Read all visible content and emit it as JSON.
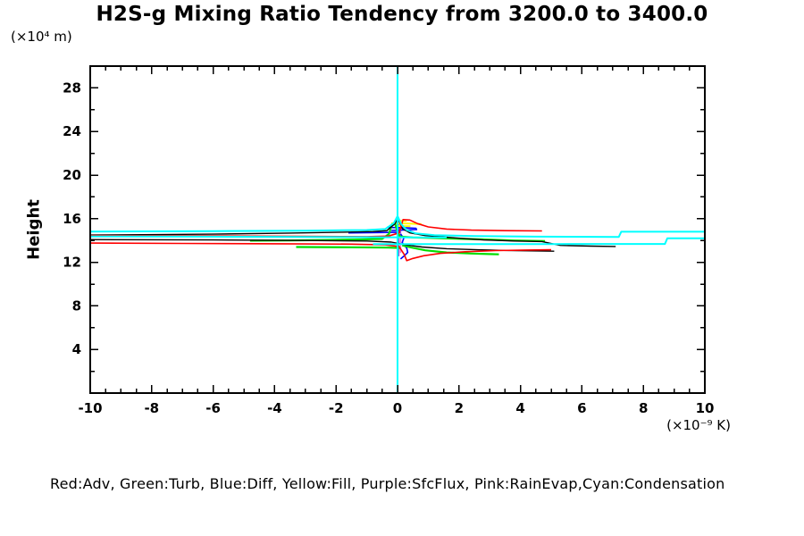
{
  "chart_data": {
    "type": "line",
    "title": "H2S-g Mixing Ratio Tendency from 3200.0 to 3400.0",
    "ylabel": "Height",
    "y_unit_label": "(×10⁴ m)",
    "x_unit_label": "(×10⁻⁹ K)",
    "legend_text": "Red:Adv, Green:Turb, Blue:Diff, Yellow:Fill, Purple:SfcFlux, Pink:RainEvap,Cyan:Condensation",
    "xlim": [
      -10,
      10
    ],
    "ylim": [
      0,
      30
    ],
    "x_major_ticks": [
      -10,
      -8,
      -6,
      -4,
      -2,
      0,
      2,
      4,
      6,
      8,
      10
    ],
    "x_minor_step": 0.5,
    "y_major_ticks": [
      4,
      8,
      12,
      16,
      20,
      24,
      28
    ],
    "y_minor_step": 2,
    "grid": false,
    "legend_position": "bottom",
    "axis_color": "#000000",
    "colors": {
      "adv": "#ff0000",
      "turb": "#00dd00",
      "diff": "#0000ff",
      "fill": "#ffff00",
      "sfcflux": "#aa44cc",
      "rainevap": "#dd7edd",
      "condensation": "#00ffff",
      "unlabeled_total": "#000000"
    },
    "series": [
      {
        "name": "sfcflux",
        "legend": "Purple:SfcFlux",
        "color": "#aa44cc",
        "width": 1.4,
        "points": [
          [
            0.04,
            15.95
          ],
          [
            0.04,
            12.55
          ]
        ]
      },
      {
        "name": "rainevap",
        "legend": "Pink:RainEvap",
        "color": "#dd7edd",
        "width": 1.6,
        "points": [
          [
            0.1,
            15.6
          ],
          [
            0.1,
            12.85
          ]
        ]
      },
      {
        "name": "fill-1",
        "legend": "Yellow:Fill",
        "color": "#ffff00",
        "width": 2,
        "points": [
          [
            -0.1,
            15.82
          ],
          [
            0.3,
            15.8
          ]
        ]
      },
      {
        "name": "fill-2",
        "legend": "Yellow:Fill",
        "color": "#ffff00",
        "width": 2,
        "points": [
          [
            -0.2,
            15.58
          ],
          [
            0.35,
            15.55
          ],
          [
            0.78,
            15.5
          ]
        ]
      },
      {
        "name": "fill-3",
        "legend": "Yellow:Fill",
        "color": "#ffff00",
        "width": 2,
        "points": [
          [
            -0.05,
            15.33
          ],
          [
            0.42,
            15.3
          ]
        ]
      },
      {
        "name": "diff-1",
        "legend": "Blue:Diff",
        "color": "#0000ff",
        "width": 1.6,
        "points": [
          [
            -1.6,
            14.7
          ],
          [
            -0.6,
            14.73
          ],
          [
            0.1,
            14.76
          ]
        ]
      },
      {
        "name": "diff-2",
        "legend": "Blue:Diff",
        "color": "#0000ff",
        "width": 1.6,
        "points": [
          [
            -0.35,
            15.2
          ],
          [
            0.2,
            15.17
          ],
          [
            0.6,
            15.12
          ],
          [
            0.62,
            15.0
          ],
          [
            0.1,
            14.95
          ],
          [
            -0.2,
            14.92
          ]
        ]
      },
      {
        "name": "diff-3",
        "legend": "Blue:Diff",
        "color": "#0000ff",
        "width": 1.6,
        "points": [
          [
            0.1,
            14.6
          ],
          [
            0.2,
            14.2
          ],
          [
            0.15,
            13.8
          ],
          [
            0.3,
            13.3
          ],
          [
            0.33,
            12.9
          ],
          [
            0.2,
            12.55
          ],
          [
            0.1,
            12.3
          ]
        ]
      },
      {
        "name": "turb-1",
        "legend": "Green:Turb",
        "color": "#00dd00",
        "width": 2.2,
        "points": [
          [
            -4.8,
            13.98
          ],
          [
            -3.5,
            14.0
          ],
          [
            -2.2,
            14.05
          ],
          [
            -1.2,
            14.1
          ],
          [
            -0.5,
            14.15
          ],
          [
            -0.28,
            14.6
          ],
          [
            -0.18,
            15.5
          ],
          [
            -0.08,
            15.55
          ],
          [
            0.0,
            14.8
          ],
          [
            0.08,
            14.35
          ],
          [
            0.5,
            14.28
          ],
          [
            1.5,
            14.2
          ],
          [
            2.8,
            14.1
          ],
          [
            3.8,
            14.0
          ],
          [
            4.8,
            13.95
          ]
        ]
      },
      {
        "name": "turb-2",
        "legend": "Green:Turb",
        "color": "#00dd00",
        "width": 2.2,
        "points": [
          [
            0.15,
            13.55
          ],
          [
            0.45,
            13.35
          ],
          [
            0.9,
            13.1
          ],
          [
            1.6,
            12.9
          ],
          [
            2.4,
            12.8
          ],
          [
            3.1,
            12.75
          ],
          [
            3.3,
            12.73
          ]
        ]
      },
      {
        "name": "turb-3",
        "legend": "Green:Turb",
        "color": "#00dd00",
        "width": 2.2,
        "points": [
          [
            -3.3,
            13.4
          ],
          [
            -1.5,
            13.38
          ],
          [
            -0.3,
            13.35
          ],
          [
            0.1,
            13.3
          ]
        ]
      },
      {
        "name": "black-upper",
        "legend": null,
        "color": "#000000",
        "width": 1.4,
        "points": [
          [
            -10,
            14.5
          ],
          [
            -6,
            14.58
          ],
          [
            -3.5,
            14.68
          ],
          [
            -1.8,
            14.76
          ],
          [
            -0.8,
            14.82
          ],
          [
            -0.35,
            14.9
          ],
          [
            -0.08,
            15.55
          ],
          [
            0.02,
            16.05
          ],
          [
            0.15,
            15.1
          ],
          [
            0.4,
            14.7
          ],
          [
            0.9,
            14.45
          ],
          [
            1.8,
            14.25
          ],
          [
            2.8,
            14.05
          ],
          [
            3.8,
            13.95
          ],
          [
            4.7,
            13.9
          ],
          [
            5.3,
            13.55
          ],
          [
            6.3,
            13.48
          ],
          [
            7.1,
            13.45
          ]
        ]
      },
      {
        "name": "black-lower",
        "legend": null,
        "color": "#000000",
        "width": 1.4,
        "points": [
          [
            -10,
            14.08
          ],
          [
            -6,
            14.05
          ],
          [
            -3,
            14.0
          ],
          [
            -1,
            13.95
          ],
          [
            -0.2,
            13.85
          ],
          [
            0.25,
            13.6
          ],
          [
            0.8,
            13.4
          ],
          [
            1.6,
            13.25
          ],
          [
            2.6,
            13.15
          ],
          [
            3.6,
            13.08
          ],
          [
            4.6,
            13.04
          ],
          [
            5.1,
            13.02
          ]
        ]
      },
      {
        "name": "adv-1",
        "legend": "Red:Adv",
        "color": "#ff0000",
        "width": 1.6,
        "points": [
          [
            -10,
            14.45
          ],
          [
            -6,
            14.42
          ],
          [
            -3,
            14.38
          ],
          [
            -1,
            14.35
          ],
          [
            -0.3,
            14.4
          ],
          [
            0.05,
            14.7
          ],
          [
            0.18,
            15.92
          ],
          [
            0.4,
            15.88
          ],
          [
            0.65,
            15.55
          ],
          [
            1.0,
            15.25
          ],
          [
            1.6,
            15.05
          ],
          [
            2.4,
            14.95
          ],
          [
            3.5,
            14.9
          ],
          [
            4.7,
            14.88
          ]
        ]
      },
      {
        "name": "adv-2",
        "legend": "Red:Adv",
        "color": "#ff0000",
        "width": 1.6,
        "points": [
          [
            -10,
            13.76
          ],
          [
            -7,
            13.73
          ],
          [
            -3.7,
            13.7
          ],
          [
            -1.5,
            13.66
          ],
          [
            -0.4,
            13.6
          ],
          [
            0.05,
            13.45
          ],
          [
            0.22,
            12.7
          ],
          [
            0.3,
            12.15
          ],
          [
            0.5,
            12.35
          ],
          [
            0.85,
            12.6
          ],
          [
            1.4,
            12.82
          ],
          [
            2.2,
            12.97
          ],
          [
            3.2,
            13.07
          ],
          [
            4.2,
            13.12
          ],
          [
            5.0,
            13.15
          ]
        ]
      },
      {
        "name": "condensation-zero-line",
        "legend": "Cyan:Condensation",
        "color": "#00ffff",
        "width": 2,
        "points": [
          [
            0,
            0
          ],
          [
            0,
            30
          ]
        ]
      },
      {
        "name": "condensation-upper",
        "legend": "Cyan:Condensation",
        "color": "#00ffff",
        "width": 2,
        "points": [
          [
            -10,
            14.82
          ],
          [
            -6,
            14.86
          ],
          [
            -3,
            14.9
          ],
          [
            -1,
            14.96
          ],
          [
            -0.4,
            15.05
          ],
          [
            -0.12,
            15.6
          ],
          [
            0,
            16.25
          ],
          [
            0.12,
            15.5
          ],
          [
            0.3,
            14.95
          ],
          [
            0.6,
            14.65
          ],
          [
            1.2,
            14.48
          ],
          [
            2.5,
            14.4
          ],
          [
            4.5,
            14.35
          ],
          [
            7.2,
            14.33
          ],
          [
            7.28,
            14.8
          ],
          [
            10,
            14.8
          ]
        ]
      },
      {
        "name": "condensation-mid",
        "legend": "Cyan:Condensation",
        "color": "#00ffff",
        "width": 2,
        "points": [
          [
            -10,
            14.38
          ],
          [
            -6,
            14.35
          ],
          [
            -3,
            14.32
          ],
          [
            -1,
            14.3
          ],
          [
            0.3,
            14.28
          ],
          [
            1.6,
            14.27
          ]
        ]
      },
      {
        "name": "condensation-lower",
        "legend": "Cyan:Condensation",
        "color": "#00ffff",
        "width": 2,
        "points": [
          [
            -0.8,
            13.66
          ],
          [
            2,
            13.66
          ],
          [
            5,
            13.67
          ],
          [
            8.7,
            13.68
          ],
          [
            8.78,
            14.2
          ],
          [
            10,
            14.2
          ]
        ]
      }
    ]
  }
}
